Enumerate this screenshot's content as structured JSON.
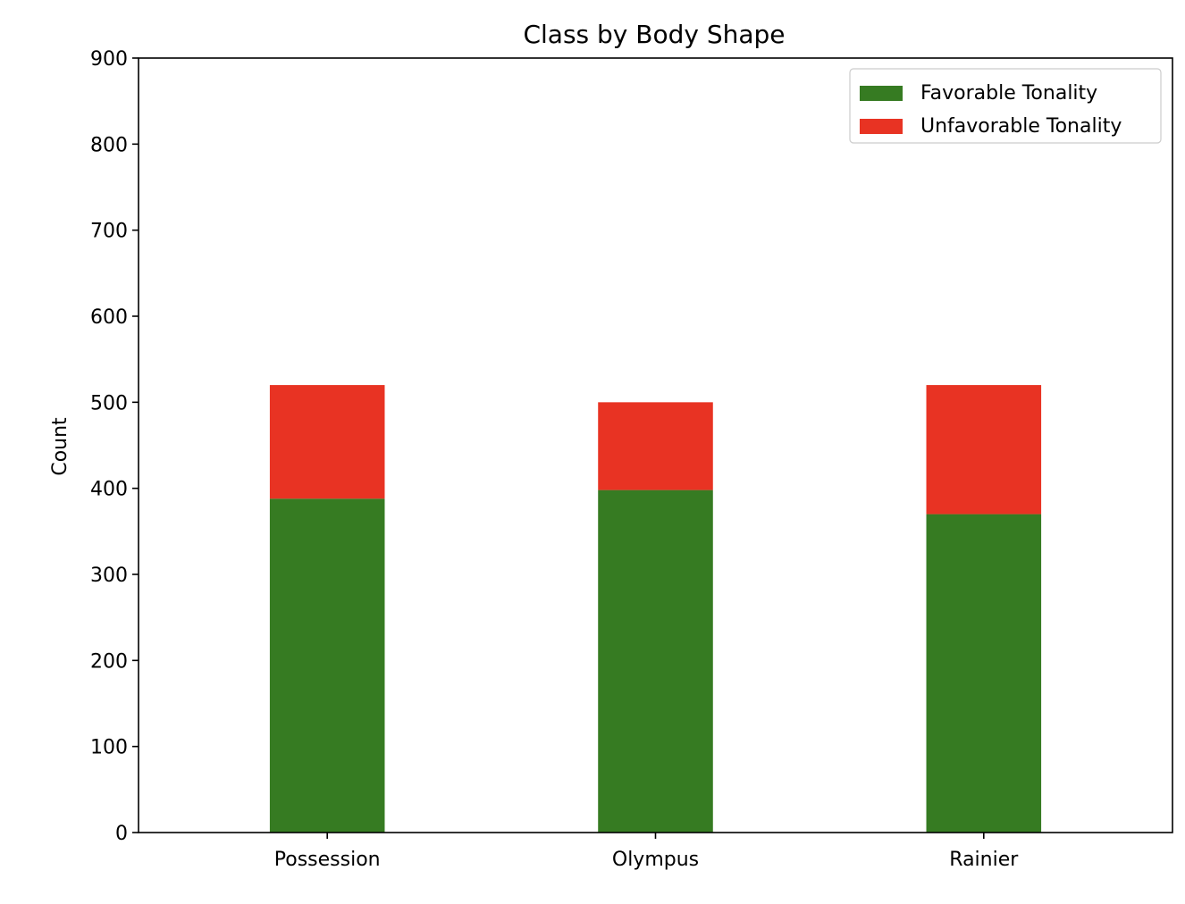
{
  "chart_data": {
    "type": "bar",
    "stacked": true,
    "title": "Class by Body Shape",
    "xlabel": "",
    "ylabel": "Count",
    "categories": [
      "Possession",
      "Olympus",
      "Rainier"
    ],
    "series": [
      {
        "name": "Favorable Tonality",
        "color": "#367B22",
        "values": [
          388,
          398,
          370
        ]
      },
      {
        "name": "Unfavorable Tonality",
        "color": "#E83323",
        "values": [
          132,
          102,
          150
        ]
      }
    ],
    "ylim": [
      0,
      900
    ],
    "yticks": [
      0,
      100,
      200,
      300,
      400,
      500,
      600,
      700,
      800,
      900
    ],
    "grid": false,
    "legend_position": "top-right"
  }
}
